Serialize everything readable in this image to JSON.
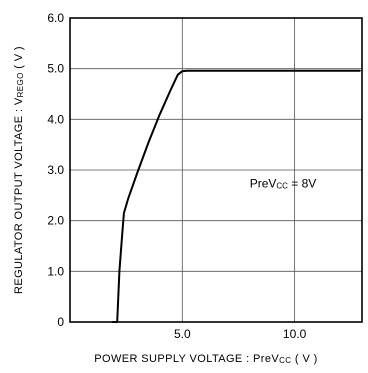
{
  "chart_data": {
    "type": "line",
    "xlabel": {
      "main": "POWER SUPPLY VOLTAGE : PreV",
      "sub": "CC",
      "unit": " ( V )"
    },
    "ylabel": {
      "main": "REGULATOR OUTPUT VOLTAGE : V",
      "sub": "REGO",
      "unit": " ( V )"
    },
    "xlim": [
      0,
      13
    ],
    "ylim": [
      0,
      6.0
    ],
    "xticks": [
      5,
      10
    ],
    "xtick_labels": [
      "5.0",
      "10.0"
    ],
    "yticks": [
      0,
      1,
      2,
      3,
      4,
      5,
      6
    ],
    "ytick_labels": [
      "0",
      "1.0",
      "2.0",
      "3.0",
      "4.0",
      "5.0",
      "6.0"
    ],
    "grid": true,
    "annotation": {
      "main": "PreV",
      "sub": "CC",
      "rest": " = 8V"
    },
    "series": [
      {
        "x": [
          1.9,
          2.1,
          2.2,
          2.3,
          2.4,
          2.6,
          3.0,
          3.5,
          4.0,
          4.5,
          4.8,
          5.0,
          5.2,
          6.0,
          8.0,
          10.0,
          12.0,
          12.9
        ],
        "y": [
          0.0,
          0.0,
          1.0,
          1.6,
          2.15,
          2.45,
          2.95,
          3.55,
          4.1,
          4.6,
          4.88,
          4.95,
          4.96,
          4.96,
          4.96,
          4.96,
          4.96,
          4.96
        ]
      }
    ]
  }
}
